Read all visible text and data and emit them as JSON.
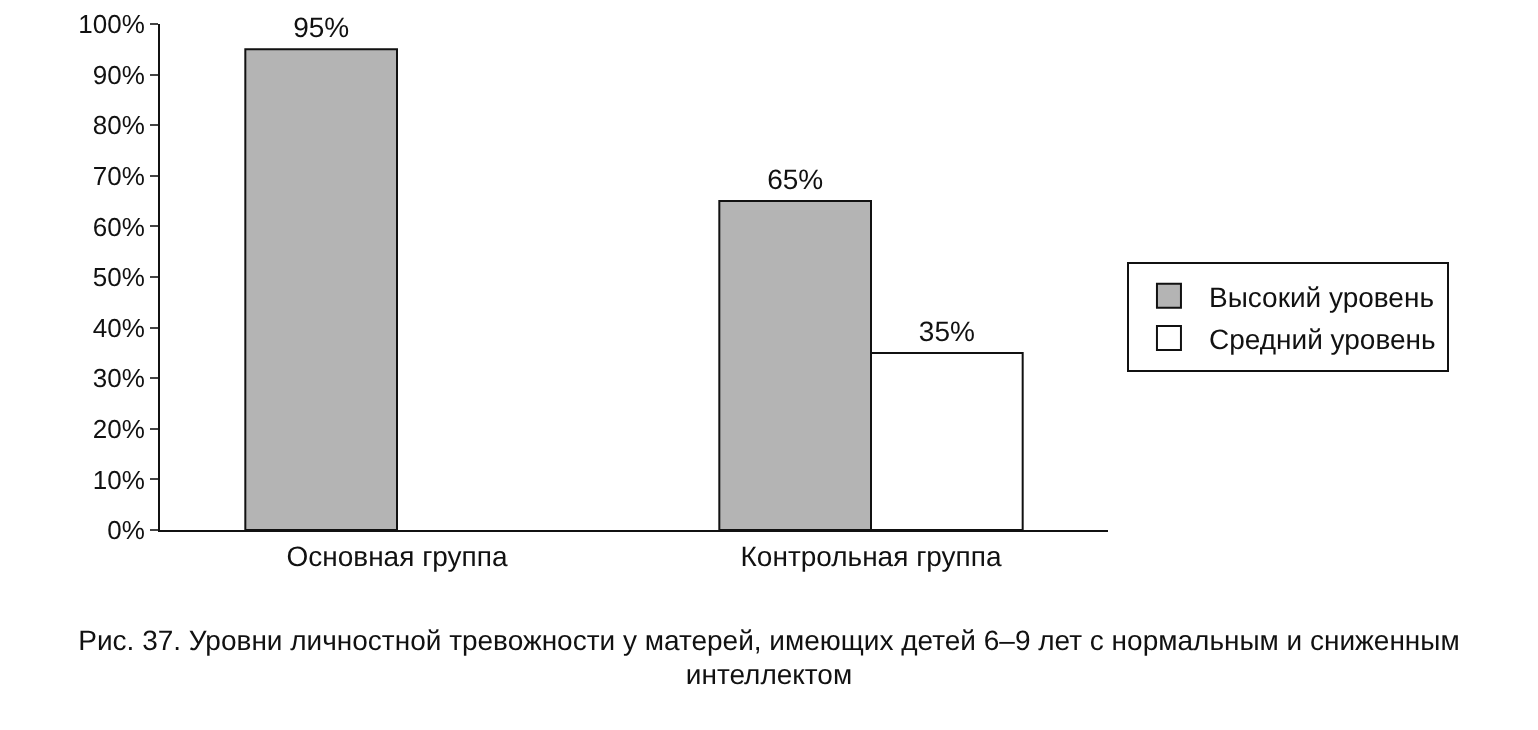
{
  "chart_data": {
    "type": "bar",
    "categories": [
      "Основная группа",
      "Контрольная группа"
    ],
    "series": [
      {
        "name": "Высокий уровень",
        "color": "#b4b4b4",
        "values": [
          95,
          65
        ],
        "value_labels": [
          "95%",
          "65%"
        ]
      },
      {
        "name": "Средний уровень",
        "color": "#ffffff",
        "values": [
          null,
          35
        ],
        "value_labels": [
          null,
          "35%"
        ]
      }
    ],
    "ylim": [
      0,
      100
    ],
    "yticks": [
      {
        "value": 0,
        "label": "0%"
      },
      {
        "value": 10,
        "label": "10%"
      },
      {
        "value": 20,
        "label": "20%"
      },
      {
        "value": 30,
        "label": "30%"
      },
      {
        "value": 40,
        "label": "40%"
      },
      {
        "value": 50,
        "label": "50%"
      },
      {
        "value": 60,
        "label": "60%"
      },
      {
        "value": 70,
        "label": "70%"
      },
      {
        "value": 80,
        "label": "80%"
      },
      {
        "value": 90,
        "label": "90%"
      },
      {
        "value": 100,
        "label": "100%"
      }
    ],
    "grid": false,
    "legend": "right",
    "annotations": [
      "Рис. 37. Уровни личностной тревожности у матерей, имеющих детей 6–9 лет с нормальным и сниженным интеллектом"
    ]
  }
}
